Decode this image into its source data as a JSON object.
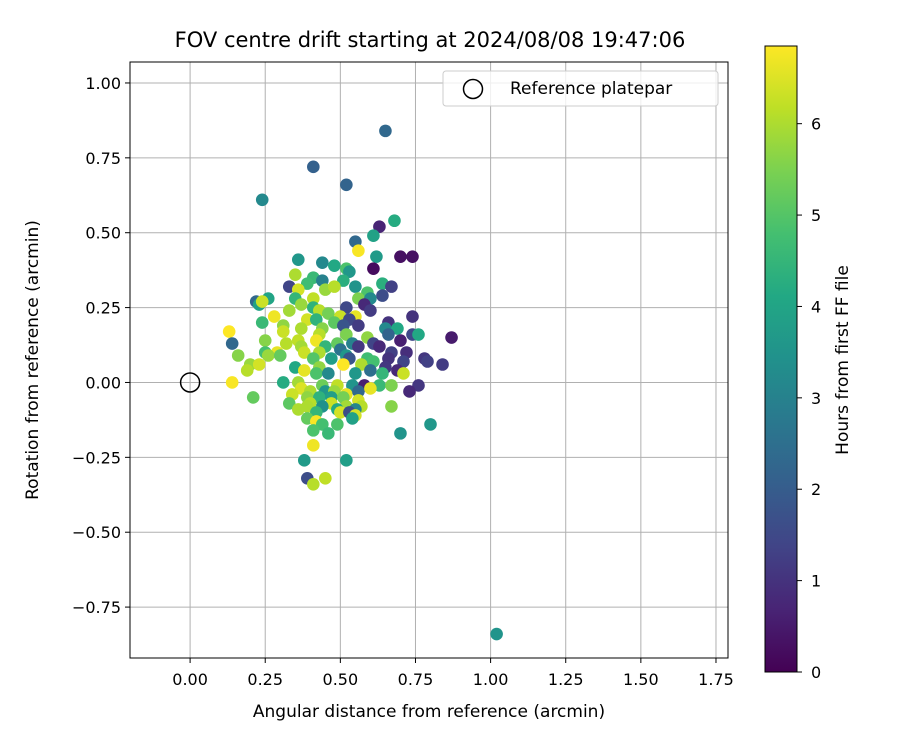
{
  "chart_data": {
    "type": "scatter",
    "title": "FOV centre drift starting at 2024/08/08 19:47:06",
    "xlabel": "Angular distance from reference (arcmin)",
    "ylabel": "Rotation from reference (arcmin)",
    "xlim": [
      -0.2,
      1.79
    ],
    "ylim": [
      -0.92,
      1.07
    ],
    "x_ticks": [
      0.0,
      0.25,
      0.5,
      0.75,
      1.0,
      1.25,
      1.5,
      1.75
    ],
    "x_tick_labels": [
      "0.00",
      "0.25",
      "0.50",
      "0.75",
      "1.00",
      "1.25",
      "1.50",
      "1.75"
    ],
    "y_ticks": [
      -0.75,
      -0.5,
      -0.25,
      0.0,
      0.25,
      0.5,
      0.75,
      1.0
    ],
    "y_tick_labels": [
      "−0.75",
      "−0.50",
      "−0.25",
      "0.00",
      "0.25",
      "0.50",
      "0.75",
      "1.00"
    ],
    "grid": true,
    "legend": {
      "position": "top-right",
      "entries": [
        {
          "label": "Reference platepar",
          "marker": "open-circle"
        }
      ]
    },
    "reference_point": {
      "x": 0.0,
      "y": 0.0
    },
    "colorbar": {
      "label": "Hours from first FF file",
      "colormap": "viridis",
      "range": [
        0,
        6.85
      ],
      "ticks": [
        0,
        1,
        2,
        3,
        4,
        5,
        6
      ],
      "tick_labels": [
        "0",
        "1",
        "2",
        "3",
        "4",
        "5",
        "6"
      ]
    },
    "points": [
      [
        0.65,
        0.84,
        2.3
      ],
      [
        0.41,
        0.72,
        2.1
      ],
      [
        0.52,
        0.66,
        2.2
      ],
      [
        0.24,
        0.61,
        3.2
      ],
      [
        0.68,
        0.54,
        4.2
      ],
      [
        0.63,
        0.52,
        0.7
      ],
      [
        0.61,
        0.49,
        3.9
      ],
      [
        0.55,
        0.47,
        2.3
      ],
      [
        0.56,
        0.44,
        6.8
      ],
      [
        0.62,
        0.42,
        3.7
      ],
      [
        0.7,
        0.42,
        0.3
      ],
      [
        0.74,
        0.42,
        0.3
      ],
      [
        0.36,
        0.41,
        3.6
      ],
      [
        0.44,
        0.4,
        3.2
      ],
      [
        0.48,
        0.39,
        4.1
      ],
      [
        0.52,
        0.38,
        4.9
      ],
      [
        0.53,
        0.37,
        3.6
      ],
      [
        0.61,
        0.38,
        0.2
      ],
      [
        0.35,
        0.36,
        6.0
      ],
      [
        0.41,
        0.35,
        4.6
      ],
      [
        0.44,
        0.34,
        3.0
      ],
      [
        0.51,
        0.34,
        4.3
      ],
      [
        0.39,
        0.33,
        4.7
      ],
      [
        0.55,
        0.32,
        3.5
      ],
      [
        0.64,
        0.33,
        4.3
      ],
      [
        0.67,
        0.32,
        1.3
      ],
      [
        0.33,
        0.32,
        1.4
      ],
      [
        0.36,
        0.31,
        6.4
      ],
      [
        0.45,
        0.31,
        5.8
      ],
      [
        0.48,
        0.32,
        6.1
      ],
      [
        0.59,
        0.3,
        4.9
      ],
      [
        0.64,
        0.29,
        1.6
      ],
      [
        0.26,
        0.28,
        4.0
      ],
      [
        0.35,
        0.28,
        4.5
      ],
      [
        0.41,
        0.28,
        6.2
      ],
      [
        0.56,
        0.28,
        5.5
      ],
      [
        0.6,
        0.28,
        3.2
      ],
      [
        0.22,
        0.27,
        2.3
      ],
      [
        0.23,
        0.26,
        3.9
      ],
      [
        0.37,
        0.26,
        5.8
      ],
      [
        0.41,
        0.25,
        4.4
      ],
      [
        0.52,
        0.25,
        1.5
      ],
      [
        0.58,
        0.26,
        0.8
      ],
      [
        0.24,
        0.27,
        6.3
      ],
      [
        0.33,
        0.24,
        5.9
      ],
      [
        0.43,
        0.24,
        6.1
      ],
      [
        0.46,
        0.23,
        5.4
      ],
      [
        0.5,
        0.22,
        6.3
      ],
      [
        0.55,
        0.22,
        6.6
      ],
      [
        0.6,
        0.24,
        1.2
      ],
      [
        0.74,
        0.22,
        1.0
      ],
      [
        0.28,
        0.22,
        6.7
      ],
      [
        0.39,
        0.21,
        6.4
      ],
      [
        0.42,
        0.21,
        4.4
      ],
      [
        0.48,
        0.2,
        5.1
      ],
      [
        0.53,
        0.21,
        1.5
      ],
      [
        0.66,
        0.2,
        1.0
      ],
      [
        0.24,
        0.2,
        4.6
      ],
      [
        0.31,
        0.19,
        5.7
      ],
      [
        0.37,
        0.18,
        6.0
      ],
      [
        0.44,
        0.18,
        5.6
      ],
      [
        0.51,
        0.19,
        1.8
      ],
      [
        0.56,
        0.19,
        1.2
      ],
      [
        0.65,
        0.18,
        3.2
      ],
      [
        0.69,
        0.18,
        4.1
      ],
      [
        0.13,
        0.17,
        6.9
      ],
      [
        0.31,
        0.17,
        6.3
      ],
      [
        0.43,
        0.16,
        6.1
      ],
      [
        0.52,
        0.16,
        5.5
      ],
      [
        0.59,
        0.15,
        5.7
      ],
      [
        0.66,
        0.16,
        2.2
      ],
      [
        0.74,
        0.16,
        1.5
      ],
      [
        0.76,
        0.16,
        4.1
      ],
      [
        0.87,
        0.15,
        0.5
      ],
      [
        0.36,
        0.14,
        6.2
      ],
      [
        0.42,
        0.14,
        6.7
      ],
      [
        0.49,
        0.13,
        5.2
      ],
      [
        0.54,
        0.13,
        3.0
      ],
      [
        0.61,
        0.13,
        1.4
      ],
      [
        0.7,
        0.14,
        0.6
      ],
      [
        0.14,
        0.13,
        2.3
      ],
      [
        0.25,
        0.14,
        5.6
      ],
      [
        0.32,
        0.13,
        6.1
      ],
      [
        0.37,
        0.12,
        5.9
      ],
      [
        0.45,
        0.12,
        4.5
      ],
      [
        0.5,
        0.11,
        2.6
      ],
      [
        0.56,
        0.12,
        1.1
      ],
      [
        0.63,
        0.12,
        0.8
      ],
      [
        0.67,
        0.1,
        1.3
      ],
      [
        0.72,
        0.1,
        0.9
      ],
      [
        0.29,
        0.1,
        6.6
      ],
      [
        0.38,
        0.1,
        6.3
      ],
      [
        0.43,
        0.1,
        6.0
      ],
      [
        0.52,
        0.09,
        3.6
      ],
      [
        0.25,
        0.1,
        4.8
      ],
      [
        0.26,
        0.09,
        5.8
      ],
      [
        0.3,
        0.09,
        5.2
      ],
      [
        0.41,
        0.08,
        5.0
      ],
      [
        0.47,
        0.08,
        3.8
      ],
      [
        0.53,
        0.08,
        1.8
      ],
      [
        0.59,
        0.08,
        4.7
      ],
      [
        0.66,
        0.08,
        1.0
      ],
      [
        0.16,
        0.09,
        5.6
      ],
      [
        0.78,
        0.08,
        1.1
      ],
      [
        0.79,
        0.07,
        1.3
      ],
      [
        0.84,
        0.06,
        1.2
      ],
      [
        0.71,
        0.07,
        1.4
      ],
      [
        0.2,
        0.06,
        5.8
      ],
      [
        0.23,
        0.06,
        6.4
      ],
      [
        0.35,
        0.05,
        4.1
      ],
      [
        0.43,
        0.05,
        5.7
      ],
      [
        0.51,
        0.06,
        6.9
      ],
      [
        0.57,
        0.06,
        6.0
      ],
      [
        0.61,
        0.07,
        4.8
      ],
      [
        0.65,
        0.05,
        1.1
      ],
      [
        0.19,
        0.04,
        6.1
      ],
      [
        0.38,
        0.04,
        6.6
      ],
      [
        0.42,
        0.03,
        4.9
      ],
      [
        0.46,
        0.03,
        3.2
      ],
      [
        0.55,
        0.03,
        3.6
      ],
      [
        0.6,
        0.04,
        2.5
      ],
      [
        0.64,
        0.03,
        4.5
      ],
      [
        0.69,
        0.04,
        0.8
      ],
      [
        0.71,
        0.03,
        6.3
      ],
      [
        0.14,
        0.0,
        6.8
      ],
      [
        0.31,
        0.0,
        4.2
      ],
      [
        0.36,
        0.0,
        5.9
      ],
      [
        0.44,
        -0.01,
        5.3
      ],
      [
        0.49,
        -0.01,
        6.2
      ],
      [
        0.54,
        -0.01,
        3.5
      ],
      [
        0.58,
        -0.01,
        0.6
      ],
      [
        0.63,
        -0.01,
        4.6
      ],
      [
        0.67,
        -0.01,
        5.5
      ],
      [
        0.76,
        -0.01,
        1.1
      ],
      [
        0.73,
        -0.03,
        0.8
      ],
      [
        0.37,
        -0.02,
        6.5
      ],
      [
        0.4,
        -0.03,
        6.0
      ],
      [
        0.45,
        -0.03,
        3.6
      ],
      [
        0.48,
        -0.03,
        5.8
      ],
      [
        0.52,
        -0.04,
        6.6
      ],
      [
        0.56,
        -0.03,
        2.3
      ],
      [
        0.6,
        -0.02,
        6.6
      ],
      [
        0.21,
        -0.05,
        5.2
      ],
      [
        0.34,
        -0.04,
        6.3
      ],
      [
        0.39,
        -0.05,
        5.7
      ],
      [
        0.43,
        -0.05,
        4.4
      ],
      [
        0.47,
        -0.05,
        3.8
      ],
      [
        0.51,
        -0.05,
        5.4
      ],
      [
        0.56,
        -0.06,
        6.4
      ],
      [
        0.33,
        -0.07,
        5.1
      ],
      [
        0.4,
        -0.07,
        6.1
      ],
      [
        0.47,
        -0.07,
        6.3
      ],
      [
        0.52,
        -0.08,
        5.9
      ],
      [
        0.57,
        -0.08,
        6.1
      ],
      [
        0.67,
        -0.08,
        5.6
      ],
      [
        0.39,
        -0.08,
        6.0
      ],
      [
        0.44,
        -0.08,
        3.4
      ],
      [
        0.49,
        -0.09,
        4.1
      ],
      [
        0.55,
        -0.09,
        3.1
      ],
      [
        0.36,
        -0.09,
        6.0
      ],
      [
        0.42,
        -0.1,
        4.5
      ],
      [
        0.5,
        -0.1,
        6.4
      ],
      [
        0.53,
        -0.1,
        1.6
      ],
      [
        0.55,
        -0.11,
        6.4
      ],
      [
        0.54,
        -0.12,
        3.9
      ],
      [
        0.39,
        -0.12,
        5.2
      ],
      [
        0.42,
        -0.13,
        6.8
      ],
      [
        0.44,
        -0.14,
        4.8
      ],
      [
        0.49,
        -0.14,
        4.9
      ],
      [
        0.8,
        -0.14,
        3.6
      ],
      [
        0.41,
        -0.16,
        4.9
      ],
      [
        0.46,
        -0.17,
        4.6
      ],
      [
        0.7,
        -0.17,
        3.5
      ],
      [
        0.41,
        -0.21,
        6.7
      ],
      [
        0.38,
        -0.26,
        3.7
      ],
      [
        0.52,
        -0.26,
        3.8
      ],
      [
        0.45,
        -0.32,
        6.2
      ],
      [
        0.39,
        -0.32,
        1.6
      ],
      [
        0.41,
        -0.34,
        6.1
      ],
      [
        1.02,
        -0.84,
        3.5
      ]
    ]
  }
}
